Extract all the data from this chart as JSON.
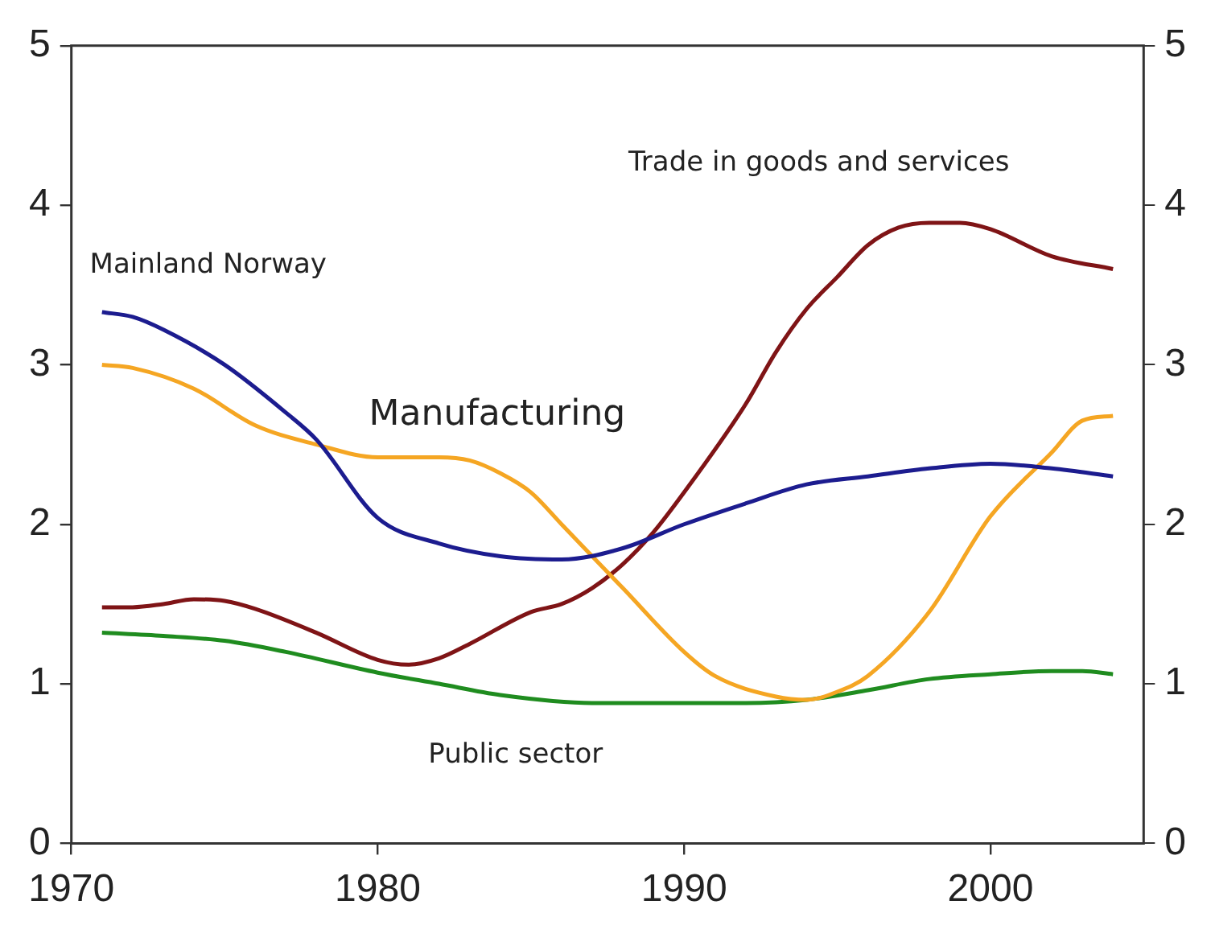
{
  "chart_data": {
    "type": "line",
    "xlim": [
      1970,
      2005
    ],
    "xticks": [
      1970,
      1980,
      1990,
      2000
    ],
    "ylim": [
      0,
      5
    ],
    "yticks": [
      0,
      1,
      2,
      3,
      4,
      5
    ],
    "y2lim": [
      0,
      5
    ],
    "y2ticks": [
      0,
      1,
      2,
      3,
      4,
      5
    ],
    "grid": false,
    "legend": false,
    "marker": "none",
    "line_style": "solid",
    "series": [
      {
        "name": "Mainland Norway",
        "color": "#1c1c8f",
        "x": [
          1971,
          1972,
          1973,
          1975,
          1977,
          1978,
          1980,
          1982,
          1984,
          1986,
          1988,
          1990,
          1992,
          1994,
          1996,
          1998,
          2000,
          2002,
          2004
        ],
        "values": [
          3.33,
          3.3,
          3.22,
          3.0,
          2.7,
          2.53,
          2.04,
          1.88,
          1.8,
          1.78,
          1.85,
          2.0,
          2.13,
          2.25,
          2.3,
          2.35,
          2.38,
          2.35,
          2.3
        ]
      },
      {
        "name": "Manufacturing",
        "color": "#f5a623",
        "x": [
          1971,
          1972,
          1974,
          1976,
          1978,
          1980,
          1982,
          1983,
          1984,
          1985,
          1986,
          1988,
          1990,
          1991,
          1993,
          1994,
          1995,
          1996,
          1998,
          2000,
          2002,
          2003,
          2004
        ],
        "values": [
          3.0,
          2.98,
          2.85,
          2.62,
          2.5,
          2.42,
          2.42,
          2.4,
          2.32,
          2.2,
          2.0,
          1.6,
          1.2,
          1.05,
          0.92,
          0.9,
          0.95,
          1.05,
          1.45,
          2.05,
          2.45,
          2.65,
          2.68
        ]
      },
      {
        "name": "Trade in goods and services",
        "color": "#7f1416",
        "x": [
          1971,
          1972,
          1973,
          1974,
          1975,
          1976,
          1978,
          1980,
          1981,
          1982,
          1983,
          1985,
          1986,
          1987,
          1988,
          1989,
          1990,
          1992,
          1993,
          1994,
          1995,
          1996,
          1997,
          1998,
          1999,
          2000,
          2002,
          2004
        ],
        "values": [
          1.48,
          1.48,
          1.5,
          1.53,
          1.52,
          1.47,
          1.32,
          1.15,
          1.12,
          1.16,
          1.25,
          1.45,
          1.5,
          1.6,
          1.75,
          1.95,
          2.2,
          2.75,
          3.08,
          3.35,
          3.55,
          3.75,
          3.86,
          3.89,
          3.89,
          3.85,
          3.68,
          3.6
        ]
      },
      {
        "name": "Public sector",
        "color": "#1f8c1f",
        "x": [
          1971,
          1973,
          1975,
          1977,
          1980,
          1982,
          1984,
          1987,
          1990,
          1992,
          1994,
          1996,
          1998,
          2000,
          2002,
          2003,
          2004
        ],
        "values": [
          1.32,
          1.3,
          1.27,
          1.2,
          1.07,
          1.0,
          0.93,
          0.88,
          0.88,
          0.88,
          0.9,
          0.96,
          1.03,
          1.06,
          1.08,
          1.08,
          1.06
        ]
      }
    ]
  }
}
